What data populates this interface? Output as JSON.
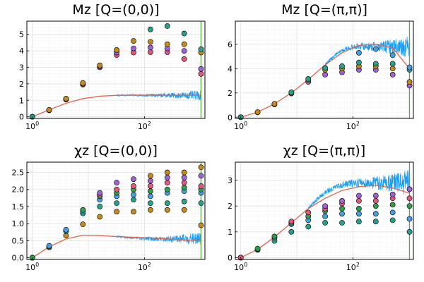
{
  "colors": {
    "noisy_line": "#1f9ff0",
    "smooth_line": "#e0664f",
    "vertical_marker": "#59a84a",
    "marker_palette": [
      "#e05878",
      "#9b63d6",
      "#c28a1c",
      "#2aa08c",
      "#4a9be0",
      "#2e9e4a"
    ]
  },
  "chart_data": [
    {
      "type": "scatter",
      "title": "Mz [Q=(0,0)]",
      "x_scale": "log",
      "xlim": [
        0.8,
        1200
      ],
      "ylim": [
        -0.1,
        5.8
      ],
      "x_tick_labels": [
        "10^0",
        "10^2"
      ],
      "x_ticks": [
        1,
        100
      ],
      "y_ticks": [
        0,
        1,
        2,
        3,
        4,
        5
      ],
      "vertical_line_x": 1024,
      "smooth_line": {
        "x": [
          1,
          2,
          4,
          8,
          16,
          32,
          64,
          128,
          256,
          512,
          1024
        ],
        "y": [
          0,
          0.42,
          0.82,
          1.1,
          1.25,
          1.3,
          1.31,
          1.31,
          1.3,
          1.3,
          1.3
        ]
      },
      "noisy_line": {
        "x_start": 32,
        "x_end": 1024,
        "mean_y": 1.3,
        "spread": 0.3
      },
      "points": [
        {
          "x": 1,
          "y": [
            0,
            0,
            0,
            0
          ]
        },
        {
          "x": 2,
          "y": [
            0.4,
            0.4,
            0.42
          ]
        },
        {
          "x": 4,
          "y": [
            1.05,
            1.07,
            1.1
          ]
        },
        {
          "x": 8,
          "y": [
            1.95,
            2.0,
            2.05
          ]
        },
        {
          "x": 16,
          "y": [
            3.0,
            3.05,
            3.12
          ]
        },
        {
          "x": 32,
          "y": [
            3.75,
            3.9,
            4.05
          ]
        },
        {
          "x": 64,
          "y": [
            3.9,
            4.15,
            4.6
          ]
        },
        {
          "x": 128,
          "y": [
            3.92,
            4.2,
            4.55,
            5.3
          ]
        },
        {
          "x": 256,
          "y": [
            3.92,
            4.15,
            4.4,
            5.5
          ]
        },
        {
          "x": 512,
          "y": [
            3.5,
            4.0,
            4.4,
            5.05
          ]
        },
        {
          "x": 1024,
          "y": [
            2.6,
            2.9,
            3.9,
            4.1
          ]
        }
      ]
    },
    {
      "type": "scatter",
      "title": "Mz [Q=(π,π)]",
      "x_scale": "log",
      "xlim": [
        0.8,
        1200
      ],
      "ylim": [
        -0.1,
        7.9
      ],
      "x_tick_labels": [
        "10^0",
        "10^2"
      ],
      "x_ticks": [
        1,
        100
      ],
      "y_ticks": [
        0,
        2,
        4,
        6
      ],
      "vertical_line_x": 1024,
      "smooth_line": {
        "x": [
          1,
          2,
          4,
          8,
          16,
          32,
          64,
          128,
          256,
          512,
          1024
        ],
        "y": [
          0,
          0.42,
          1.1,
          2.0,
          3.1,
          4.3,
          5.3,
          5.9,
          6.0,
          5.7,
          4.0
        ]
      },
      "noisy_line": {
        "x_start": 32,
        "x_end": 1024,
        "mean_y": 5.8,
        "spread": 0.9
      },
      "points": [
        {
          "x": 1,
          "y": [
            0,
            0,
            0
          ]
        },
        {
          "x": 2,
          "y": [
            0.4,
            0.42
          ]
        },
        {
          "x": 4,
          "y": [
            1.05,
            1.1
          ]
        },
        {
          "x": 8,
          "y": [
            1.95,
            2.0,
            2.05
          ]
        },
        {
          "x": 16,
          "y": [
            2.9,
            3.05,
            3.15
          ]
        },
        {
          "x": 32,
          "y": [
            3.5,
            3.9,
            4.05
          ]
        },
        {
          "x": 64,
          "y": [
            3.7,
            4.0,
            4.2
          ]
        },
        {
          "x": 128,
          "y": [
            3.9,
            4.2,
            4.5,
            5.3
          ]
        },
        {
          "x": 256,
          "y": [
            3.9,
            4.2,
            4.4,
            5.6
          ]
        },
        {
          "x": 512,
          "y": [
            3.5,
            4.0,
            4.4,
            5.1
          ]
        },
        {
          "x": 1024,
          "y": [
            2.6,
            2.9,
            3.9,
            4.1
          ]
        }
      ]
    },
    {
      "type": "scatter",
      "title": "χz [Q=(0,0)]",
      "x_scale": "log",
      "xlim": [
        0.8,
        1200
      ],
      "ylim": [
        -0.05,
        2.8
      ],
      "x_tick_labels": [
        "10^0",
        "10^2"
      ],
      "x_ticks": [
        1,
        100
      ],
      "y_ticks": [
        0.0,
        0.5,
        1.0,
        1.5,
        2.0,
        2.5
      ],
      "y_tick_labels": [
        "0.0",
        "0.5",
        "1.0",
        "1.5",
        "2.0",
        "2.5"
      ],
      "vertical_line_x": 1024,
      "smooth_line": {
        "x": [
          1,
          2,
          4,
          8,
          16,
          32,
          64,
          128,
          256,
          512,
          1024
        ],
        "y": [
          0,
          0.32,
          0.55,
          0.66,
          0.65,
          0.62,
          0.6,
          0.58,
          0.55,
          0.52,
          0.5
        ]
      },
      "noisy_line": {
        "x_start": 32,
        "x_end": 1024,
        "mean_y": 0.55,
        "spread": 0.2
      },
      "points": [
        {
          "x": 1,
          "y": [
            0,
            0,
            0,
            0
          ]
        },
        {
          "x": 2,
          "y": [
            0.3,
            0.33,
            0.35
          ]
        },
        {
          "x": 4,
          "y": [
            0.65,
            0.78,
            0.82
          ]
        },
        {
          "x": 8,
          "y": [
            0.98,
            1.3,
            1.35,
            1.4
          ]
        },
        {
          "x": 16,
          "y": [
            1.2,
            1.5,
            1.7,
            1.8,
            1.85,
            1.9
          ]
        },
        {
          "x": 32,
          "y": [
            1.35,
            1.6,
            1.8,
            1.9,
            2.0,
            2.2
          ]
        },
        {
          "x": 64,
          "y": [
            1.35,
            1.7,
            1.85,
            2.0,
            2.1,
            2.3
          ]
        },
        {
          "x": 128,
          "y": [
            1.4,
            1.6,
            1.8,
            1.95,
            2.1,
            2.25,
            2.4
          ]
        },
        {
          "x": 256,
          "y": [
            1.4,
            1.6,
            1.9,
            2.0,
            2.2,
            2.35,
            2.5
          ]
        },
        {
          "x": 512,
          "y": [
            1.4,
            1.65,
            1.95,
            2.05,
            2.2,
            2.35,
            2.5
          ]
        },
        {
          "x": 1024,
          "y": [
            0.95,
            1.6,
            1.9,
            2.0,
            2.1,
            2.4,
            2.65
          ]
        }
      ]
    },
    {
      "type": "scatter",
      "title": "χz [Q=(π,π)]",
      "x_scale": "log",
      "xlim": [
        0.8,
        1200
      ],
      "ylim": [
        -0.07,
        3.7
      ],
      "x_tick_labels": [
        "10^0",
        "10^2"
      ],
      "x_ticks": [
        1,
        100
      ],
      "y_ticks": [
        0,
        1,
        2,
        3
      ],
      "vertical_line_x": 1024,
      "smooth_line": {
        "x": [
          1,
          2,
          4,
          8,
          16,
          32,
          64,
          128,
          256,
          512,
          1024
        ],
        "y": [
          0,
          0.32,
          0.8,
          1.35,
          1.9,
          2.3,
          2.6,
          2.75,
          2.8,
          2.7,
          2.5
        ]
      },
      "noisy_line": {
        "x_start": 16,
        "x_end": 1024,
        "mean_y": 2.9,
        "spread": 0.5
      },
      "points": [
        {
          "x": 1,
          "y": [
            0,
            0,
            0,
            0
          ]
        },
        {
          "x": 2,
          "y": [
            0.3,
            0.33,
            0.35
          ]
        },
        {
          "x": 4,
          "y": [
            0.65,
            0.78,
            0.82
          ]
        },
        {
          "x": 8,
          "y": [
            1.0,
            1.3,
            1.35,
            1.4
          ]
        },
        {
          "x": 16,
          "y": [
            1.2,
            1.45,
            1.6,
            1.75
          ]
        },
        {
          "x": 32,
          "y": [
            1.35,
            1.6,
            1.8,
            1.9,
            2.0
          ]
        },
        {
          "x": 64,
          "y": [
            1.35,
            1.7,
            1.9,
            2.1,
            2.2
          ]
        },
        {
          "x": 128,
          "y": [
            1.4,
            1.7,
            1.9,
            2.2,
            2.4
          ]
        },
        {
          "x": 256,
          "y": [
            1.4,
            1.7,
            2.0,
            2.2,
            2.4
          ]
        },
        {
          "x": 512,
          "y": [
            1.45,
            1.75,
            2.05,
            2.3,
            2.45
          ]
        },
        {
          "x": 1024,
          "y": [
            1.0,
            1.5,
            2.0,
            2.3,
            2.65
          ]
        }
      ]
    }
  ]
}
